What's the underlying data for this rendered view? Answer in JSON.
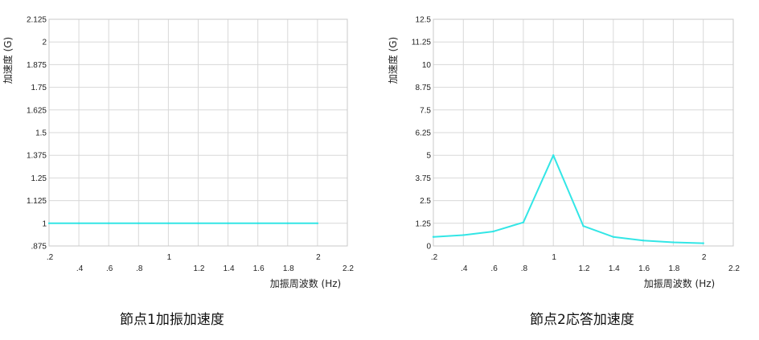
{
  "chart_data": [
    {
      "type": "line",
      "title": "",
      "caption": "節点1加振加速度",
      "xlabel": "加振周波数 (Hz)",
      "ylabel": "加速度 (G)",
      "xlim": [
        0.2,
        2.2
      ],
      "ylim": [
        0.875,
        2.125
      ],
      "x_ticks_top": [
        ".2",
        "1",
        "2"
      ],
      "x_ticks_top_values": [
        0.2,
        1.0,
        2.0
      ],
      "x_ticks_bottom": [
        ".4",
        ".6",
        ".8",
        "1.2",
        "1.4",
        "1.6",
        "1.8",
        "2.2"
      ],
      "x_ticks_bottom_values": [
        0.4,
        0.6,
        0.8,
        1.2,
        1.4,
        1.6,
        1.8,
        2.2
      ],
      "y_ticks": [
        "2.125",
        "2",
        "1.875",
        "1.75",
        "1.625",
        "1.5",
        "1.375",
        "1.25",
        "1.125",
        "1",
        ".875"
      ],
      "y_tick_values": [
        2.125,
        2.0,
        1.875,
        1.75,
        1.625,
        1.5,
        1.375,
        1.25,
        1.125,
        1.0,
        0.875
      ],
      "grid": true,
      "series": [
        {
          "color": "#33e6e6",
          "x": [
            0.2,
            0.4,
            0.6,
            0.8,
            1.0,
            1.2,
            1.4,
            1.6,
            1.8,
            2.0
          ],
          "values": [
            1,
            1,
            1,
            1,
            1,
            1,
            1,
            1,
            1,
            1
          ]
        }
      ]
    },
    {
      "type": "line",
      "title": "",
      "caption": "節点2応答加速度",
      "xlabel": "加振周波数 (Hz)",
      "ylabel": "加速度 (G)",
      "xlim": [
        0.2,
        2.2
      ],
      "ylim": [
        0,
        12.5
      ],
      "x_ticks_top": [
        ".2",
        "1",
        "2"
      ],
      "x_ticks_top_values": [
        0.2,
        1.0,
        2.0
      ],
      "x_ticks_bottom": [
        ".4",
        ".6",
        ".8",
        "1.2",
        "1.4",
        "1.6",
        "1.8",
        "2.2"
      ],
      "x_ticks_bottom_values": [
        0.4,
        0.6,
        0.8,
        1.2,
        1.4,
        1.6,
        1.8,
        2.2
      ],
      "y_ticks": [
        "12.5",
        "11.25",
        "10",
        "8.75",
        "7.5",
        "6.25",
        "5",
        "3.75",
        "2.5",
        "1.25",
        "0"
      ],
      "y_tick_values": [
        12.5,
        11.25,
        10,
        8.75,
        7.5,
        6.25,
        5,
        3.75,
        2.5,
        1.25,
        0
      ],
      "grid": true,
      "series": [
        {
          "color": "#33e6e6",
          "x": [
            0.2,
            0.4,
            0.6,
            0.8,
            1.0,
            1.2,
            1.4,
            1.6,
            1.8,
            2.0
          ],
          "values": [
            0.5,
            0.6,
            0.8,
            1.3,
            5.0,
            1.1,
            0.5,
            0.3,
            0.2,
            0.15
          ]
        }
      ]
    }
  ]
}
